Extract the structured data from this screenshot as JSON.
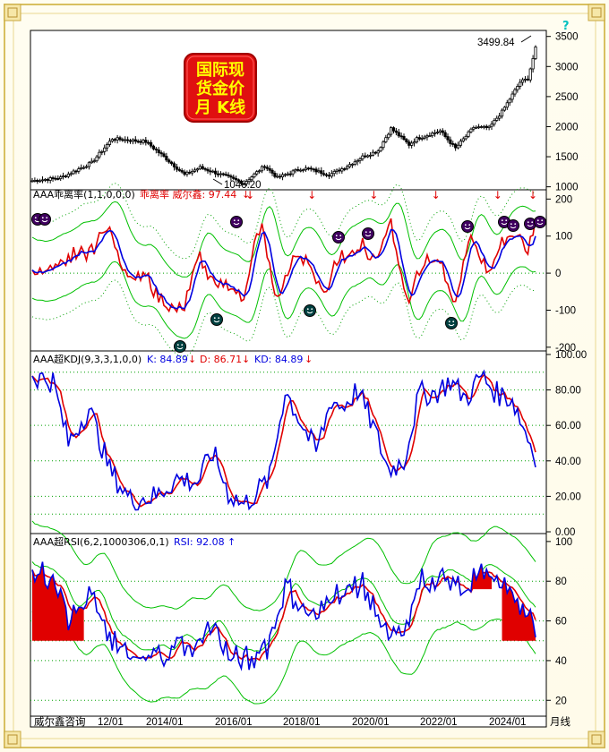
{
  "badge": {
    "line1": "国际现",
    "line2": "货金价",
    "line3": "月 K线",
    "bg": "#e01010",
    "fg": "#ffff00"
  },
  "footer": {
    "left": "威尔鑫咨询",
    "period": "月线",
    "dates": [
      "12/01",
      "2014/01",
      "2016/01",
      "2018/01",
      "2020/01",
      "2022/01",
      "2024/01"
    ]
  },
  "colors": {
    "red": "#e00000",
    "blue": "#0000e0",
    "green": "#00c000",
    "greendot": "#00a000"
  },
  "chart_data": [
    {
      "type": "candlestick",
      "name": "price",
      "ticks": [
        "3500",
        "3000",
        "2500",
        "2000",
        "1500",
        "1000"
      ],
      "ylim": [
        950,
        3600
      ],
      "labels": {
        "high": "3499.84",
        "low": "1046.20"
      },
      "x_start": "2009-01",
      "x_end": "2025-04",
      "anchors": [
        [
          "2009-01",
          1100
        ],
        [
          "2009-12",
          1150
        ],
        [
          "2010-12",
          1400
        ],
        [
          "2011-08",
          1800
        ],
        [
          "2012-09",
          1750
        ],
        [
          "2013-04",
          1500
        ],
        [
          "2013-12",
          1200
        ],
        [
          "2014-06",
          1320
        ],
        [
          "2015-03",
          1190
        ],
        [
          "2015-11",
          1060
        ],
        [
          "2016-07",
          1350
        ],
        [
          "2016-12",
          1150
        ],
        [
          "2017-09",
          1300
        ],
        [
          "2017-12",
          1300
        ],
        [
          "2018-08",
          1200
        ],
        [
          "2019-02",
          1320
        ],
        [
          "2019-09",
          1500
        ],
        [
          "2020-03",
          1600
        ],
        [
          "2020-08",
          1970
        ],
        [
          "2021-03",
          1700
        ],
        [
          "2021-06",
          1800
        ],
        [
          "2022-03",
          1930
        ],
        [
          "2022-09",
          1640
        ],
        [
          "2023-04",
          1990
        ],
        [
          "2023-10",
          1980
        ],
        [
          "2024-03",
          2250
        ],
        [
          "2024-10",
          2740
        ],
        [
          "2025-01",
          2800
        ],
        [
          "2025-04",
          3300
        ]
      ]
    },
    {
      "type": "line",
      "name": "bias",
      "title": "AAA乖离率(1,1,0,0,0)",
      "value_label": "乖离率 威尔鑫: 97.44",
      "arrow": "↓",
      "ticks": [
        "200",
        "100",
        "0",
        "-100",
        "-200"
      ],
      "ylim": [
        -210,
        225
      ],
      "arrows_at": [
        "2016-01",
        "2018-01",
        "2020-01",
        "2022-01",
        "2024-01"
      ]
    },
    {
      "type": "line",
      "name": "kdj",
      "title": "AAA超KDJ(9,3,3,1,0,0)",
      "series_labels": [
        {
          "text": "K: 84.89",
          "arrow": "↓",
          "color": "#0000e0"
        },
        {
          "text": "D: 86.71",
          "arrow": "↓",
          "color": "#e00000"
        },
        {
          "text": "KD: 84.89",
          "arrow": "↓",
          "color": "#0000e0"
        }
      ],
      "ticks": [
        "100.00",
        "80.00",
        "60.00",
        "40.00",
        "20.00",
        "0.00"
      ],
      "ylim": [
        -1,
        102
      ]
    },
    {
      "type": "line",
      "name": "rsi",
      "title": "AAA超RSI(6,2,1000306,0,1)",
      "value_label": "RSI: 92.08",
      "arrow": "↑",
      "ticks": [
        "100",
        "80",
        "60",
        "40",
        "20"
      ],
      "ylim": [
        12,
        104
      ]
    }
  ]
}
